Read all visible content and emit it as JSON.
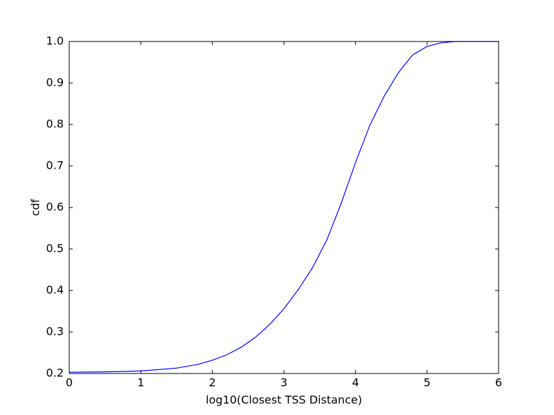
{
  "chart_data": {
    "type": "line",
    "xlabel": "log10(Closest TSS Distance)",
    "ylabel": "cdf",
    "x": [
      0,
      0.5,
      1,
      1.5,
      1.8,
      2,
      2.2,
      2.4,
      2.6,
      2.8,
      3,
      3.2,
      3.4,
      3.6,
      3.8,
      4,
      4.2,
      4.4,
      4.6,
      4.8,
      5,
      5.2,
      5.4,
      6
    ],
    "series": [
      {
        "name": "cdf",
        "color": "#0000ff",
        "values": [
          0.203,
          0.204,
          0.206,
          0.213,
          0.222,
          0.232,
          0.245,
          0.263,
          0.287,
          0.318,
          0.356,
          0.402,
          0.455,
          0.522,
          0.61,
          0.708,
          0.798,
          0.868,
          0.925,
          0.968,
          0.988,
          0.997,
          1.0,
          1.0
        ]
      }
    ],
    "xlim": [
      0,
      6
    ],
    "xticks": [
      0,
      1,
      2,
      3,
      4,
      5,
      6
    ],
    "ylim": [
      0.2,
      1.0
    ],
    "yticks": [
      0.2,
      0.3,
      0.4,
      0.5,
      0.6,
      0.7,
      0.8,
      0.9,
      {
        "value": 1.0,
        "label": "1.0"
      }
    ],
    "grid": false
  }
}
